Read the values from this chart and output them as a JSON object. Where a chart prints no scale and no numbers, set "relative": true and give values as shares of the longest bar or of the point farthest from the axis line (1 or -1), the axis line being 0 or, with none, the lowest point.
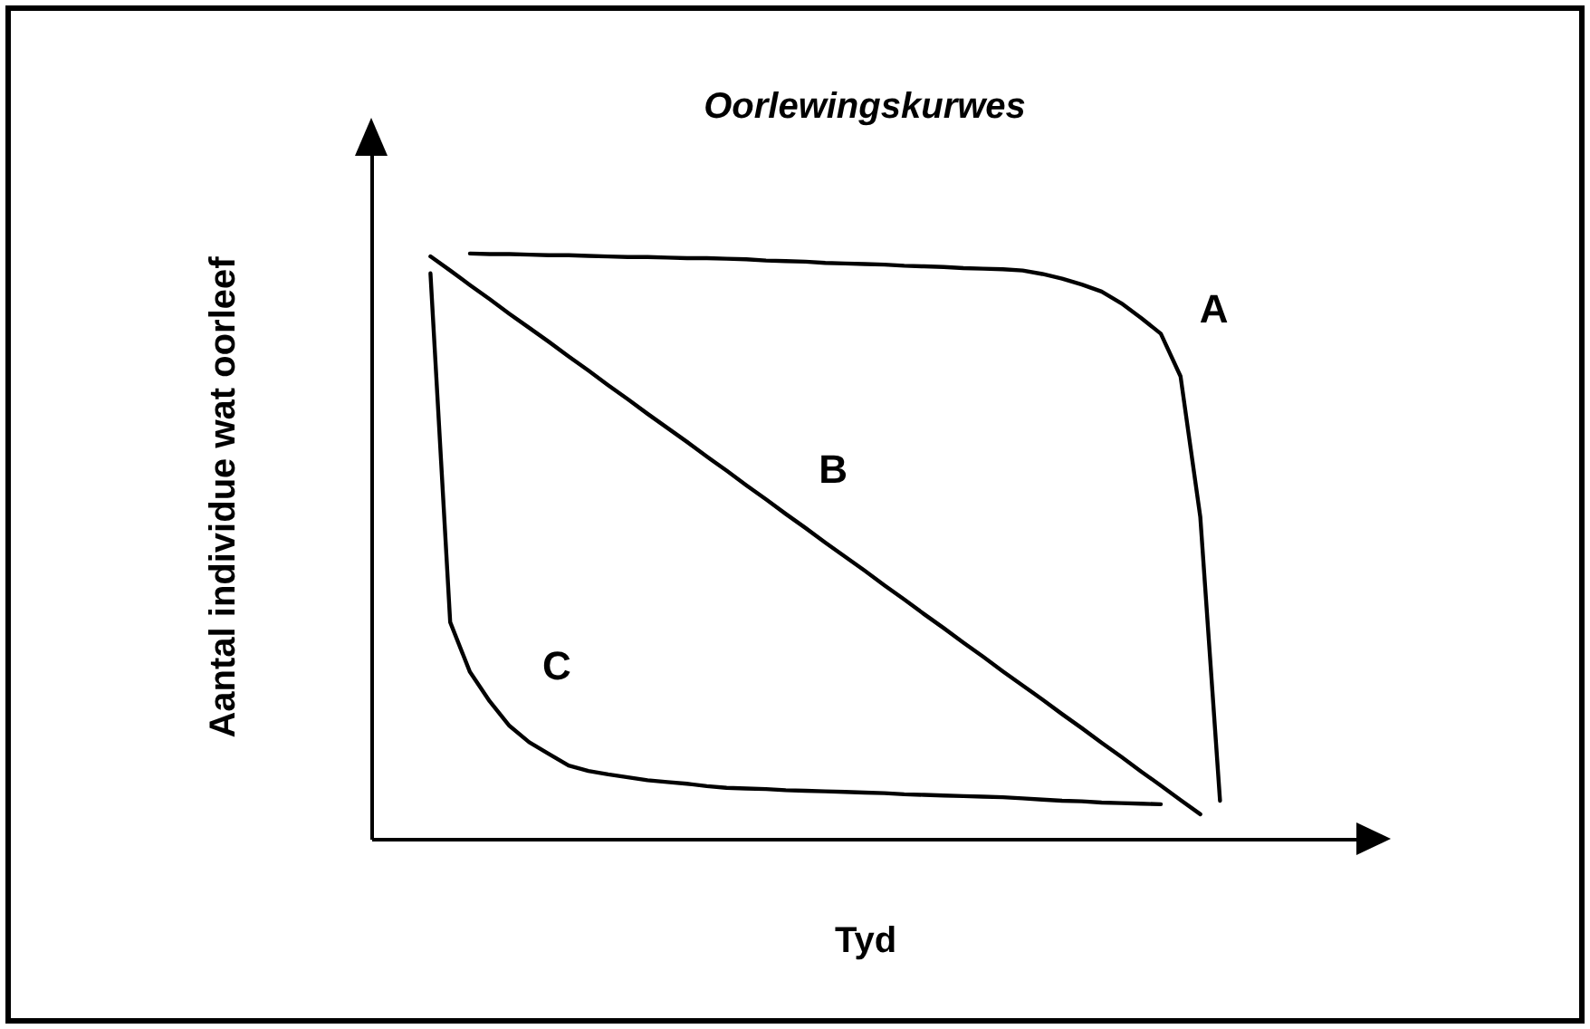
{
  "chart_data": {
    "type": "line",
    "title": "Oorlewingskurwes",
    "xlabel": "Tyd",
    "ylabel": "Aantal individue wat oorleef",
    "relative": true,
    "legend": false,
    "grid": false,
    "marker": "none",
    "line_style": "solid",
    "tick_labels": false,
    "categories": [
      null,
      null,
      null,
      null,
      null,
      null,
      null,
      null,
      null,
      null,
      null,
      null,
      null,
      null,
      null,
      null,
      null,
      null,
      null,
      null,
      null,
      null,
      null,
      null,
      null,
      null,
      null,
      null,
      null,
      null,
      null,
      null,
      null,
      null,
      null,
      null,
      null,
      null,
      null,
      null,
      null,
      null,
      null,
      null,
      null,
      null,
      null,
      null,
      null,
      null,
      null
    ],
    "series": [
      {
        "name": "A",
        "color": "#000000",
        "values": [
          null,
          null,
          null,
          null,
          null,
          1.0,
          0.999,
          0.999,
          0.998,
          0.997,
          0.997,
          0.996,
          0.995,
          0.994,
          0.994,
          0.993,
          0.992,
          0.992,
          0.991,
          0.99,
          0.988,
          0.987,
          0.986,
          0.984,
          0.983,
          0.982,
          0.981,
          0.979,
          0.978,
          0.977,
          0.975,
          0.974,
          0.973,
          0.971,
          0.965,
          0.957,
          0.947,
          0.935,
          0.915,
          0.89,
          0.863,
          0.79,
          0.55,
          0.065,
          null,
          null,
          null,
          null,
          null,
          null,
          null
        ]
      },
      {
        "name": "B",
        "color": "#000000",
        "values": [
          null,
          null,
          null,
          0.995,
          0.971,
          0.946,
          0.922,
          0.897,
          0.873,
          0.849,
          0.824,
          0.8,
          0.775,
          0.751,
          0.726,
          0.702,
          0.678,
          0.653,
          0.629,
          0.604,
          0.58,
          0.555,
          0.531,
          0.506,
          0.482,
          0.458,
          0.433,
          0.409,
          0.384,
          0.36,
          0.335,
          0.311,
          0.286,
          0.262,
          0.238,
          0.213,
          0.189,
          0.164,
          0.14,
          0.115,
          0.091,
          0.066,
          0.042,
          null,
          null,
          null,
          null,
          null,
          null,
          null,
          null
        ]
      },
      {
        "name": "C",
        "color": "#000000",
        "values": [
          null,
          null,
          null,
          0.966,
          0.37,
          0.285,
          0.235,
          0.193,
          0.165,
          0.145,
          0.125,
          0.116,
          0.11,
          0.105,
          0.1,
          0.097,
          0.094,
          0.09,
          0.087,
          0.086,
          0.085,
          0.083,
          0.082,
          0.081,
          0.08,
          0.079,
          0.078,
          0.076,
          0.075,
          0.074,
          0.073,
          0.072,
          0.071,
          0.069,
          0.067,
          0.065,
          0.064,
          0.062,
          0.061,
          0.06,
          0.059,
          null,
          null,
          null,
          null,
          null,
          null,
          null,
          null,
          null,
          null
        ]
      }
    ]
  }
}
